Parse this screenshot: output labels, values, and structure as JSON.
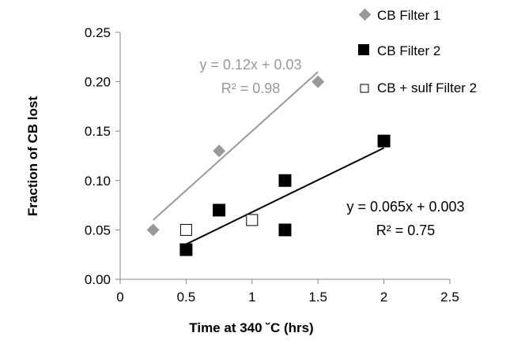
{
  "chart_data": {
    "type": "scatter",
    "xlabel": "Time at 340 ˘C (hrs)",
    "ylabel": "Fraction of CB lost",
    "xlim": [
      0,
      2.5
    ],
    "ylim": [
      0,
      0.25
    ],
    "x_ticks": [
      0,
      0.5,
      1,
      1.5,
      2,
      2.5
    ],
    "x_tick_labels": [
      "0",
      "0.5",
      "1",
      "1.5",
      "2",
      "2.5"
    ],
    "y_ticks": [
      0,
      0.05,
      0.1,
      0.15,
      0.2,
      0.25
    ],
    "y_tick_labels": [
      "0.00",
      "0.05",
      "0.10",
      "0.15",
      "0.20",
      "0.25"
    ],
    "grid": false,
    "legend_position": "top-right",
    "series": [
      {
        "name": "CB Filter 1",
        "marker": "diamond",
        "color": "#999999",
        "points": [
          [
            0.25,
            0.05
          ],
          [
            0.75,
            0.13
          ],
          [
            1.5,
            0.2
          ]
        ]
      },
      {
        "name": "CB Filter 2",
        "marker": "square-filled",
        "color": "#000000",
        "points": [
          [
            0.5,
            0.03
          ],
          [
            0.75,
            0.07
          ],
          [
            1.25,
            0.1
          ],
          [
            1.25,
            0.05
          ],
          [
            2.0,
            0.14
          ]
        ]
      },
      {
        "name": "CB + sulf Filter 2",
        "marker": "square-open",
        "color": "#000000",
        "points": [
          [
            0.5,
            0.05
          ],
          [
            1.0,
            0.06
          ]
        ]
      }
    ],
    "trendlines": [
      {
        "for": "CB Filter 1",
        "color": "#999999",
        "x_range": [
          0.25,
          1.5
        ],
        "slope": 0.12,
        "intercept": 0.03,
        "equation": "y = 0.12x + 0.03",
        "r2": "R² = 0.98"
      },
      {
        "for": "CB Filter 2",
        "color": "#000000",
        "x_range": [
          0.5,
          2.0
        ],
        "slope": 0.065,
        "intercept": 0.003,
        "equation": "y = 0.065x + 0.003",
        "r2": "R² = 0.75"
      }
    ]
  }
}
